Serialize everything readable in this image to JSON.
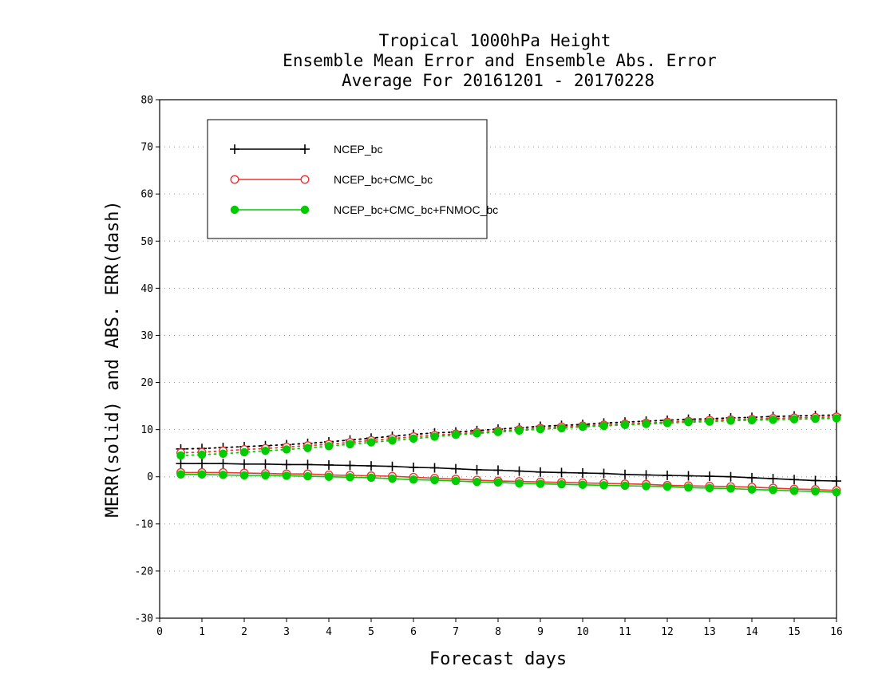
{
  "chart_data": {
    "type": "line",
    "title_lines": [
      "Tropical 1000hPa Height",
      "Ensemble Mean Error and Ensemble Abs. Error",
      "Average For 20161201 - 20170228"
    ],
    "xlabel": "Forecast days",
    "ylabel": "MERR(solid) and ABS. ERR(dash)",
    "xlim": [
      0,
      16
    ],
    "ylim": [
      -30,
      80
    ],
    "xticks": [
      0,
      1,
      2,
      3,
      4,
      5,
      6,
      7,
      8,
      9,
      10,
      11,
      12,
      13,
      14,
      15,
      16
    ],
    "yticks": [
      -30,
      -20,
      -10,
      0,
      10,
      20,
      30,
      40,
      50,
      60,
      70,
      80
    ],
    "grid": "horizontal dotted",
    "legend_position": "top-left",
    "x": [
      0.5,
      1,
      1.5,
      2,
      2.5,
      3,
      3.5,
      4,
      4.5,
      5,
      5.5,
      6,
      6.5,
      7,
      7.5,
      8,
      8.5,
      9,
      9.5,
      10,
      10.5,
      11,
      11.5,
      12,
      12.5,
      13,
      13.5,
      14,
      14.5,
      15,
      15.5,
      16
    ],
    "series": [
      {
        "name": "NCEP_bc",
        "color": "#000000",
        "marker": "plus",
        "merr": [
          2.8,
          2.8,
          2.8,
          2.7,
          2.7,
          2.6,
          2.6,
          2.5,
          2.4,
          2.3,
          2.2,
          2.0,
          1.9,
          1.7,
          1.5,
          1.4,
          1.2,
          1.0,
          0.9,
          0.8,
          0.7,
          0.5,
          0.4,
          0.3,
          0.2,
          0.1,
          0.0,
          -0.2,
          -0.4,
          -0.6,
          -0.8,
          -0.9
        ],
        "abs_err": [
          5.9,
          6.0,
          6.2,
          6.4,
          6.6,
          6.8,
          7.1,
          7.4,
          7.8,
          8.2,
          8.6,
          9.0,
          9.3,
          9.5,
          9.8,
          10.1,
          10.4,
          10.7,
          10.9,
          11.1,
          11.4,
          11.6,
          11.8,
          12.0,
          12.2,
          12.3,
          12.5,
          12.6,
          12.8,
          12.9,
          13.0,
          13.1
        ]
      },
      {
        "name": "NCEP_bc+CMC_bc",
        "color": "#ee3333",
        "marker": "open-circle",
        "merr": [
          0.9,
          0.9,
          0.9,
          0.8,
          0.7,
          0.6,
          0.6,
          0.4,
          0.3,
          0.2,
          0.1,
          -0.1,
          -0.3,
          -0.5,
          -0.7,
          -0.9,
          -1.0,
          -1.1,
          -1.2,
          -1.3,
          -1.4,
          -1.5,
          -1.6,
          -1.8,
          -1.9,
          -2.0,
          -2.1,
          -2.2,
          -2.4,
          -2.6,
          -2.7,
          -2.9
        ],
        "abs_err": [
          5.1,
          5.2,
          5.5,
          5.8,
          6.0,
          6.3,
          6.6,
          6.9,
          7.3,
          7.7,
          8.1,
          8.5,
          8.8,
          9.1,
          9.4,
          9.7,
          10.0,
          10.3,
          10.6,
          10.8,
          11.0,
          11.2,
          11.4,
          11.6,
          11.8,
          12.0,
          12.1,
          12.2,
          12.4,
          12.5,
          12.6,
          12.7
        ]
      },
      {
        "name": "NCEP_bc+CMC_bc+FNMOC_bc",
        "color": "#00cc00",
        "marker": "filled-circle",
        "merr": [
          0.5,
          0.5,
          0.4,
          0.3,
          0.3,
          0.2,
          0.1,
          0.0,
          -0.1,
          -0.2,
          -0.4,
          -0.6,
          -0.7,
          -0.9,
          -1.1,
          -1.2,
          -1.4,
          -1.5,
          -1.6,
          -1.7,
          -1.8,
          -1.9,
          -2.0,
          -2.1,
          -2.3,
          -2.4,
          -2.5,
          -2.7,
          -2.8,
          -3.0,
          -3.1,
          -3.3
        ],
        "abs_err": [
          4.5,
          4.7,
          4.9,
          5.2,
          5.5,
          5.8,
          6.1,
          6.5,
          6.9,
          7.3,
          7.7,
          8.1,
          8.5,
          8.9,
          9.2,
          9.5,
          9.8,
          10.1,
          10.3,
          10.6,
          10.8,
          11.0,
          11.2,
          11.4,
          11.6,
          11.7,
          11.9,
          12.0,
          12.1,
          12.2,
          12.3,
          12.4
        ]
      }
    ]
  }
}
